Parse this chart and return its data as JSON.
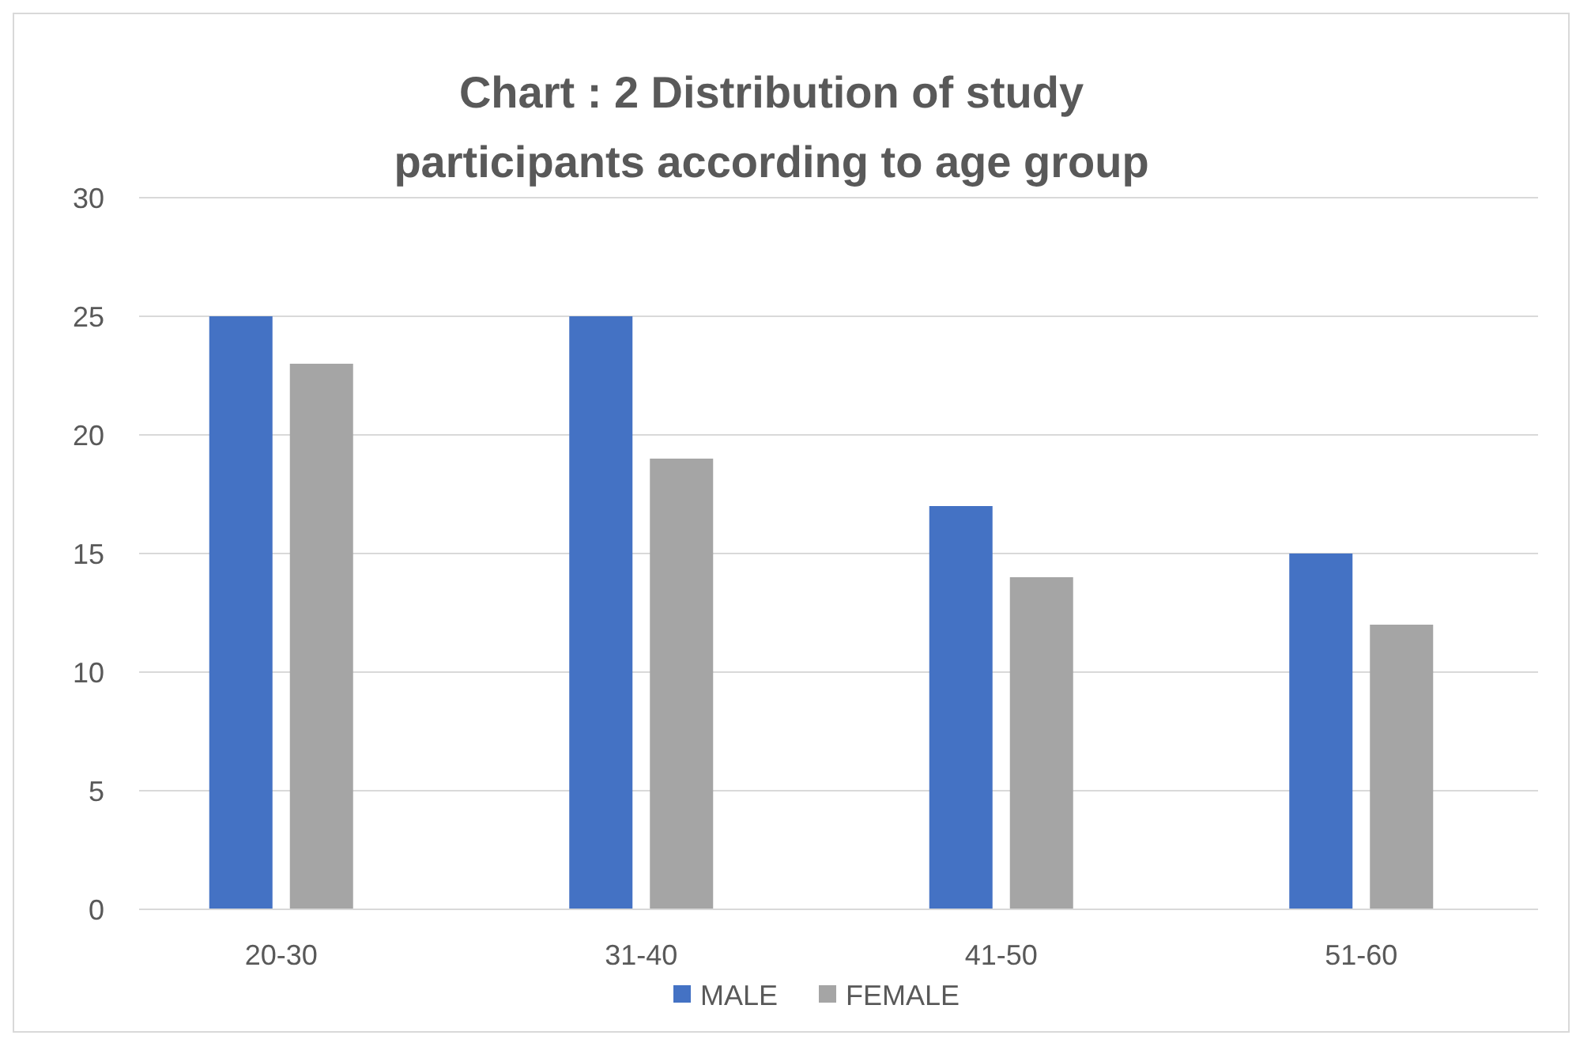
{
  "chart_data": {
    "type": "bar",
    "title": "Chart : 2 Distribution of study participants according to age group",
    "categories": [
      "20-30",
      "31-40",
      "41-50",
      "51-60"
    ],
    "series": [
      {
        "name": "MALE",
        "color": "#4472c4",
        "values": [
          25,
          25,
          17,
          15
        ]
      },
      {
        "name": "FEMALE",
        "color": "#a5a5a5",
        "values": [
          23,
          19,
          14,
          12
        ]
      }
    ],
    "ylim": [
      0,
      30
    ],
    "yticks": [
      0,
      5,
      10,
      15,
      20,
      25,
      30
    ],
    "grid": "y",
    "legend": "bottom"
  }
}
